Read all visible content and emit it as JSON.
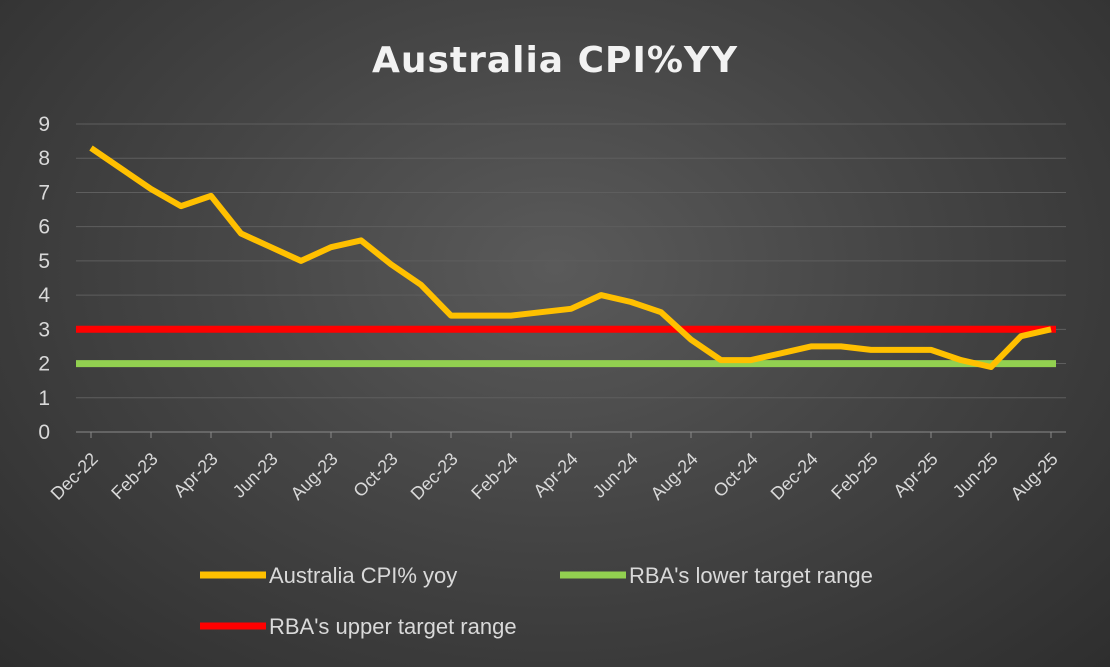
{
  "chart_data": {
    "type": "line",
    "title": "Australia CPI%YY",
    "xlabel": "",
    "ylabel": "",
    "ylim": [
      0,
      9
    ],
    "yticks": [
      "0",
      "1",
      "2",
      "3",
      "4",
      "5",
      "6",
      "7",
      "8",
      "9"
    ],
    "grid": true,
    "legend_position": "bottom",
    "x": [
      "Dec-22",
      "Jan-23",
      "Feb-23",
      "Mar-23",
      "Apr-23",
      "May-23",
      "Jun-23",
      "Jul-23",
      "Aug-23",
      "Sep-23",
      "Oct-23",
      "Nov-23",
      "Dec-23",
      "Jan-24",
      "Feb-24",
      "Mar-24",
      "Apr-24",
      "May-24",
      "Jun-24",
      "Jul-24",
      "Aug-24",
      "Sep-24",
      "Oct-24",
      "Nov-24",
      "Dec-24",
      "Jan-25",
      "Feb-25",
      "Mar-25",
      "Apr-25",
      "May-25",
      "Jun-25",
      "Jul-25",
      "Aug-25"
    ],
    "x_tick_labels": [
      "Dec-22",
      "Feb-23",
      "Apr-23",
      "Jun-23",
      "Aug-23",
      "Oct-23",
      "Dec-23",
      "Feb-24",
      "Apr-24",
      "Jun-24",
      "Aug-24",
      "Oct-24",
      "Dec-24",
      "Feb-25",
      "Apr-25",
      "Jun-25",
      "Aug-25"
    ],
    "series": [
      {
        "name": "Australia CPI% yoy",
        "color": "#ffc000",
        "values": [
          8.3,
          7.7,
          7.1,
          6.6,
          6.9,
          5.8,
          5.4,
          5.0,
          5.4,
          5.6,
          4.9,
          4.3,
          3.4,
          3.4,
          3.4,
          3.5,
          3.6,
          4.0,
          3.8,
          3.5,
          2.7,
          2.1,
          2.1,
          2.3,
          2.5,
          2.5,
          2.4,
          2.4,
          2.4,
          2.1,
          1.9,
          2.8,
          3.0
        ]
      },
      {
        "name": "RBA's lower target range",
        "color": "#92d050",
        "values": [
          2,
          2,
          2,
          2,
          2,
          2,
          2,
          2,
          2,
          2,
          2,
          2,
          2,
          2,
          2,
          2,
          2,
          2,
          2,
          2,
          2,
          2,
          2,
          2,
          2,
          2,
          2,
          2,
          2,
          2,
          2,
          2,
          2
        ]
      },
      {
        "name": "RBA's upper target range",
        "color": "#ff0000",
        "values": [
          3,
          3,
          3,
          3,
          3,
          3,
          3,
          3,
          3,
          3,
          3,
          3,
          3,
          3,
          3,
          3,
          3,
          3,
          3,
          3,
          3,
          3,
          3,
          3,
          3,
          3,
          3,
          3,
          3,
          3,
          3,
          3,
          3
        ]
      }
    ]
  }
}
